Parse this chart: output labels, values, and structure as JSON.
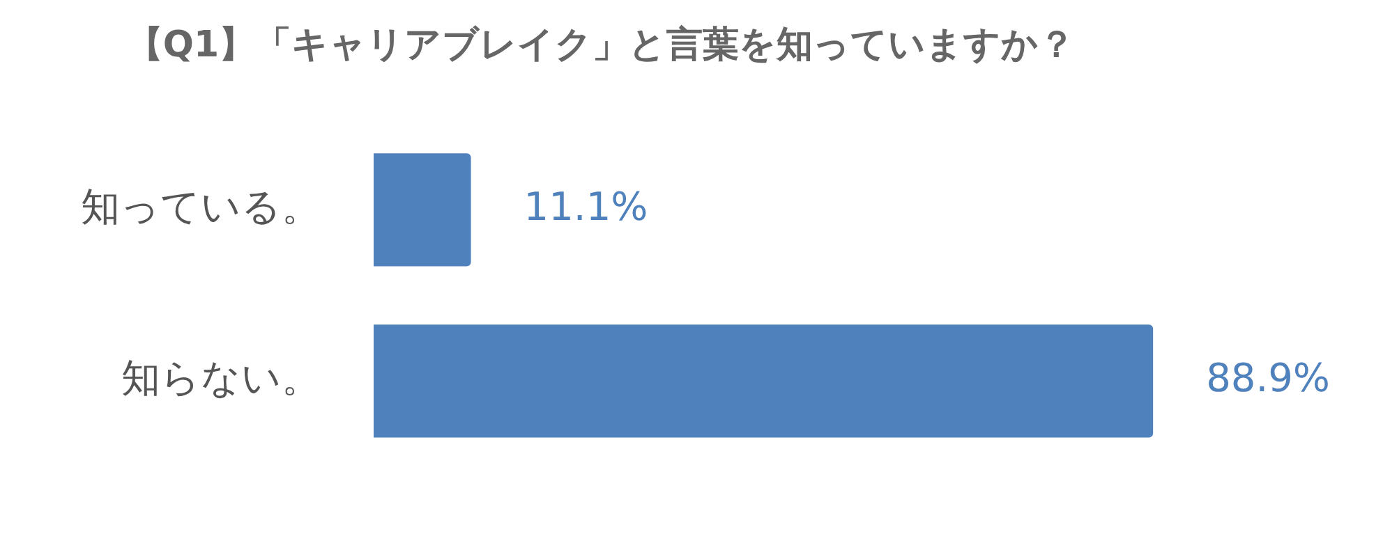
{
  "chart_data": {
    "type": "bar",
    "orientation": "horizontal",
    "title": "【Q1】「キャリアブレイク」と言葉を知っていますか？",
    "categories": [
      "知っている。",
      "知らない。"
    ],
    "values": [
      11.1,
      88.9
    ],
    "value_labels": [
      "11.1%",
      "88.9%"
    ],
    "color": "#4f81bd"
  }
}
